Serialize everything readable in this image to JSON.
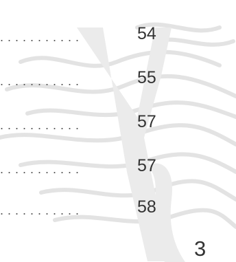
{
  "toc": {
    "entries": [
      {
        "leader": "...........",
        "page": "54"
      },
      {
        "leader": "...........",
        "page": "55"
      },
      {
        "leader": "...........",
        "page": "57"
      },
      {
        "leader": "...........",
        "page": "57"
      },
      {
        "leader": "...........",
        "page": "58"
      }
    ]
  },
  "page_number": "3",
  "colors": {
    "art": "#d9d9d9",
    "text": "#333333"
  }
}
